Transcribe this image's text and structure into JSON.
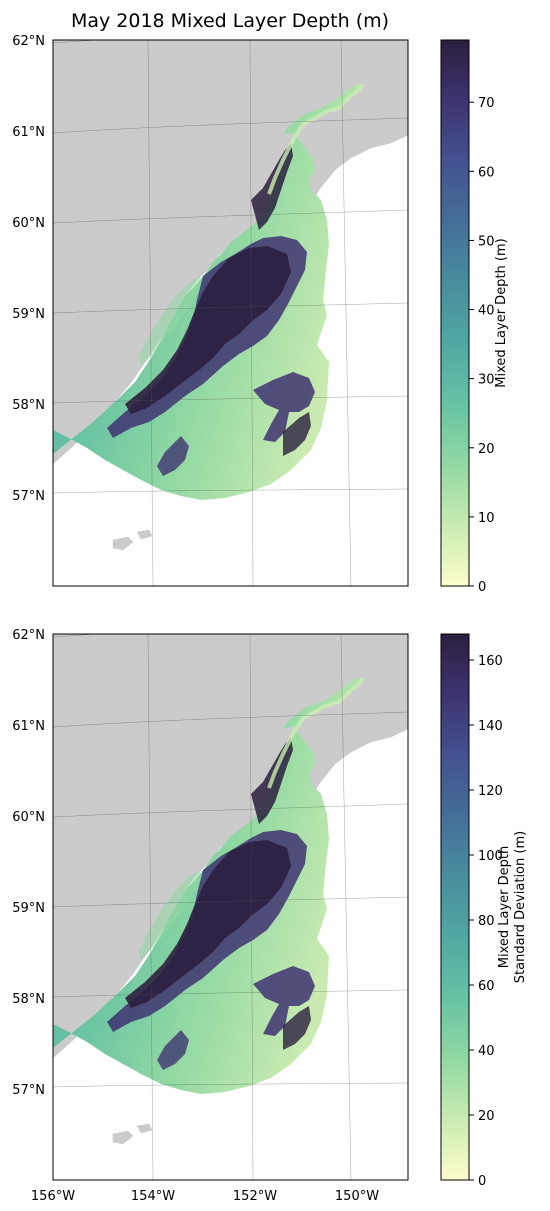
{
  "title": "May 2018 Mixed Layer Depth (m)",
  "panels": [
    {
      "id": "mld",
      "colorbar_label_lines": [
        "Mixed Layer Depth (m)"
      ],
      "colorbar_ticks": [
        "0",
        "10",
        "20",
        "30",
        "40",
        "50",
        "60",
        "70"
      ],
      "colorbar_range": [
        0,
        79
      ],
      "show_lon_labels": false
    },
    {
      "id": "mld-std",
      "colorbar_label_lines": [
        "Mixed Layer Depth",
        "Standard Deviation (m)"
      ],
      "colorbar_ticks": [
        "0",
        "20",
        "40",
        "60",
        "80",
        "100",
        "120",
        "140",
        "160"
      ],
      "colorbar_range": [
        0,
        168
      ],
      "show_lon_labels": true
    }
  ],
  "lat_labels": [
    "62°N",
    "61°N",
    "60°N",
    "59°N",
    "58°N",
    "57°N"
  ],
  "lon_labels": [
    "156°W",
    "154°W",
    "152°W",
    "150°W"
  ],
  "colormap": [
    "#fdfdcc",
    "#c9ebb1",
    "#91d8a3",
    "#66c2a3",
    "#51a8a2",
    "#488d9d",
    "#446e99",
    "#43528f",
    "#3e3371",
    "#2b1f3e"
  ],
  "colors": {
    "land": "#cbcbcb",
    "ocean": "#ffffff",
    "gridline": "#555555"
  }
}
